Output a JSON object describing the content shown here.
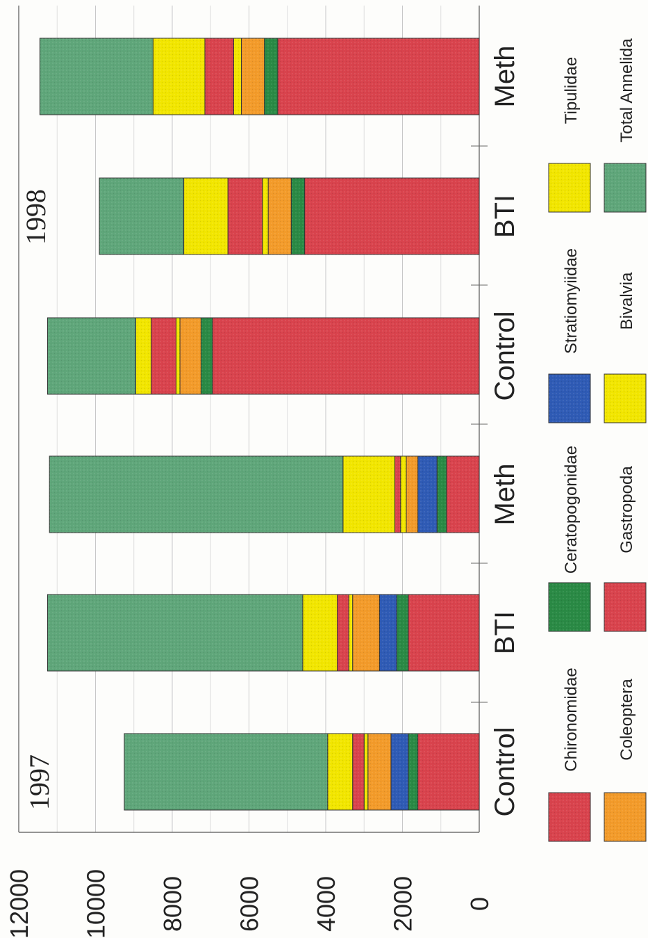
{
  "chart_data": {
    "type": "bar",
    "orientation": "horizontal",
    "stacked": true,
    "categories": [
      "Control",
      "BTI",
      "Meth",
      "Control",
      "BTI",
      "Meth"
    ],
    "groups": [
      "1997",
      "1998"
    ],
    "xlim": [
      0,
      12000
    ],
    "x_ticks": [
      "0",
      "2000",
      "4000",
      "6000",
      "8000",
      "10000",
      "12000"
    ],
    "grid": true,
    "legend_position": "bottom",
    "series": [
      {
        "name": "Chironomidae",
        "color": "#d9434d",
        "values": [
          1600,
          1850,
          850,
          6950,
          4550,
          5250
        ]
      },
      {
        "name": "Ceratopogonidae",
        "color": "#2a8a45",
        "values": [
          250,
          300,
          250,
          300,
          350,
          350
        ]
      },
      {
        "name": "Stratiomyiidae",
        "color": "#2f5bb5",
        "values": [
          450,
          450,
          500,
          0,
          0,
          0
        ]
      },
      {
        "name": "Coleoptera",
        "color": "#f39b2a",
        "values": [
          600,
          700,
          300,
          550,
          600,
          600
        ]
      },
      {
        "name": "Bivalvia",
        "color": "#f2e600",
        "values": [
          100,
          100,
          150,
          100,
          150,
          200
        ]
      },
      {
        "name": "Gastropoda",
        "color": "#d9434d",
        "values": [
          300,
          300,
          150,
          650,
          900,
          750
        ]
      },
      {
        "name": "Tipulidae",
        "color": "#f2e600",
        "values": [
          650,
          900,
          1350,
          400,
          1150,
          1350
        ]
      },
      {
        "name": "Total Annelida",
        "color": "#5fa67a",
        "values": [
          5300,
          6650,
          7650,
          2300,
          2200,
          2950
        ]
      }
    ]
  }
}
